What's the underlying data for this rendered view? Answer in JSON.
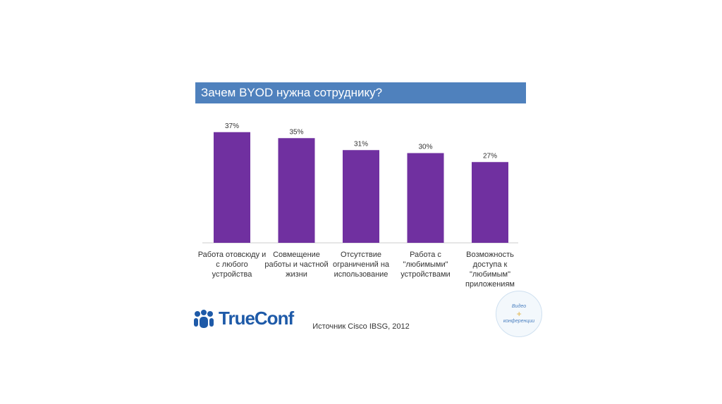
{
  "chart_data": {
    "type": "bar",
    "title": "Зачем BYOD нужна сотруднику?",
    "categories": [
      "Работа отовсюду и с любого устройства",
      "Совмещение работы и частной жизни",
      "Отсутствие ограничений на использование",
      "Работа с \"любимыми\" устройствами",
      "Возможность доступа к \"любимым\" приложениям"
    ],
    "values": [
      37,
      35,
      31,
      30,
      27
    ],
    "data_labels": [
      "37%",
      "35%",
      "31%",
      "30%",
      "27%"
    ],
    "ylim": [
      0,
      40
    ],
    "bar_color": "#7030a0",
    "grid": false
  },
  "title_color": "#4f81bd",
  "logo": "TrueConf",
  "source": "Источник Cisco  IBSG, 2012",
  "stamp": {
    "top": "Видео",
    "bottom": "конференции"
  }
}
